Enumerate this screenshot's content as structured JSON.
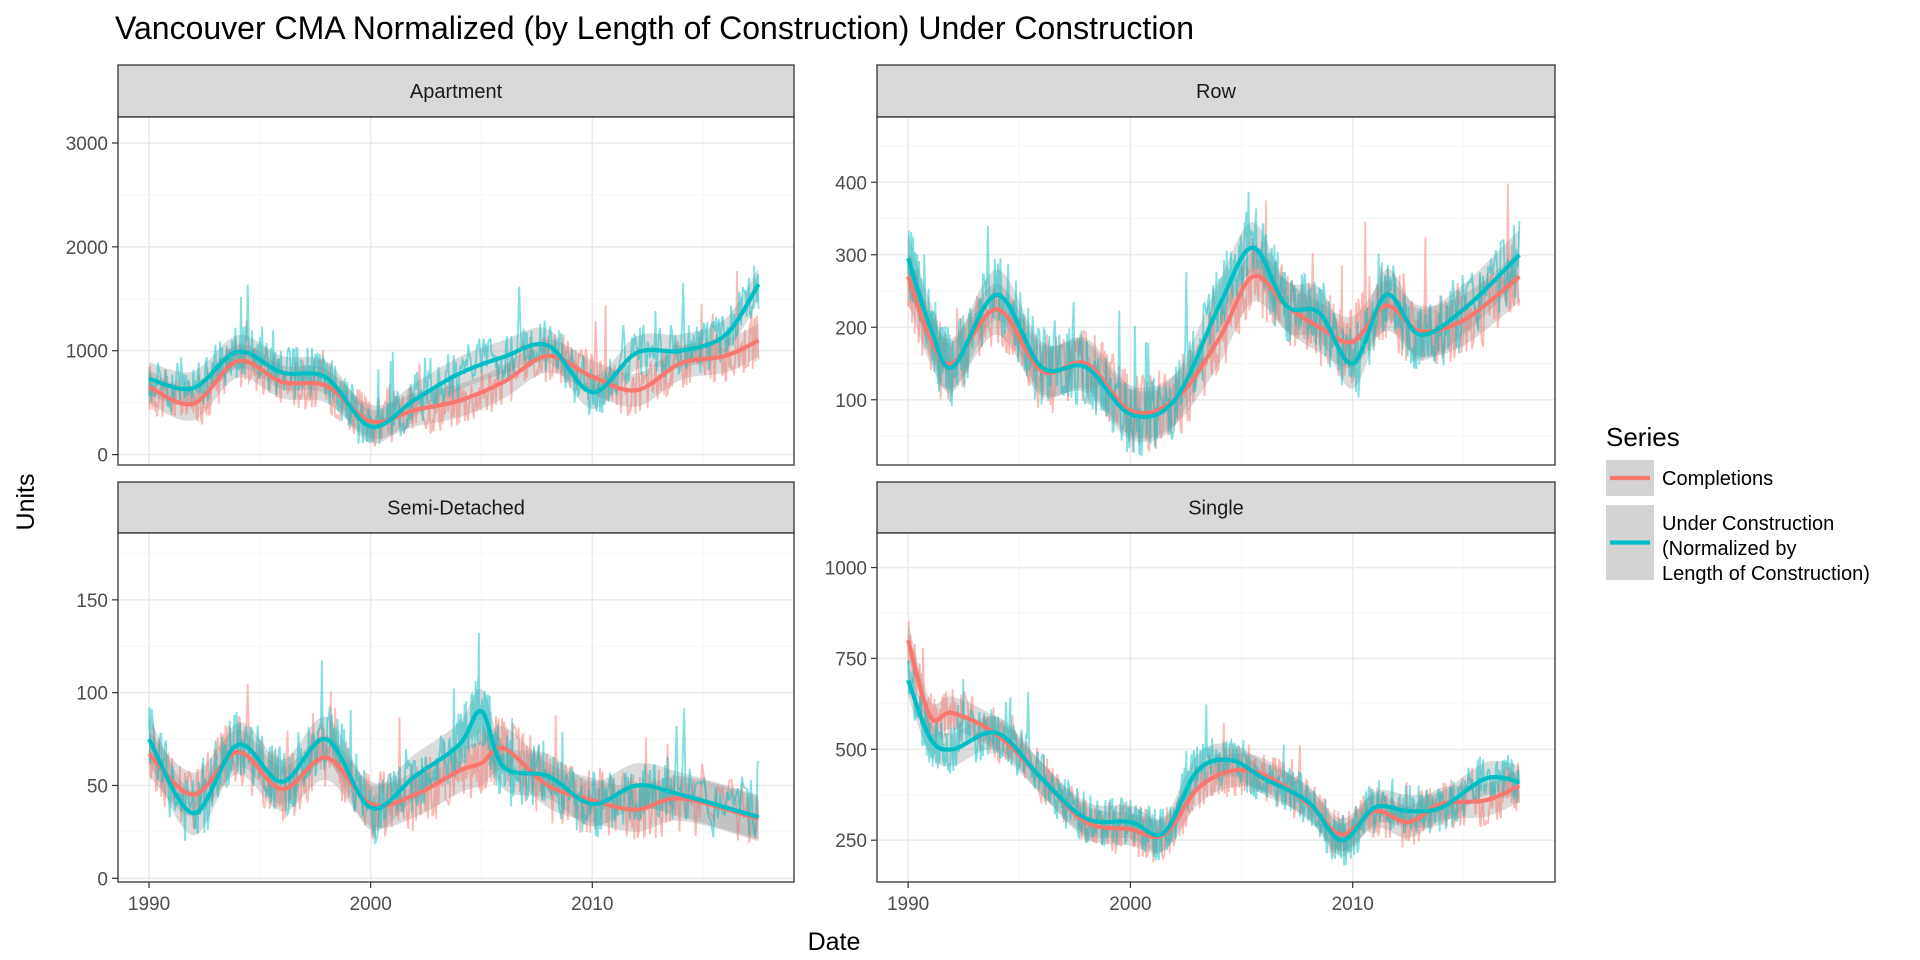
{
  "chart_data": {
    "type": "line",
    "title": "Vancouver CMA Normalized (by Length of Construction) Under Construction",
    "xlabel": "Date",
    "ylabel": "Units",
    "legend": {
      "title": "Series",
      "placement": "right",
      "entries": [
        {
          "lines": [
            "Completions"
          ],
          "color": "#F8766D"
        },
        {
          "lines": [
            "Under Construction",
            "(Normalized by",
            "Length of Construction)"
          ],
          "color": "#00BFC4"
        }
      ]
    },
    "colors": {
      "completions": "#F8766D",
      "under_construction": "#00BFC4",
      "ribbon": "#999999",
      "strip": "#D9D9D9",
      "grid_major": "#EBEBEB",
      "grid_minor": "#F5F5F5"
    },
    "grid": true,
    "x_ticks": [
      1990,
      2000,
      2010
    ],
    "xlim": [
      1988.6,
      2019.1
    ],
    "panels": [
      {
        "name": "Apartment",
        "ylim": [
          -100,
          3250
        ],
        "y_ticks": [
          0,
          1000,
          2000,
          3000
        ],
        "x": [
          1990,
          1992,
          1994,
          1996,
          1998,
          2000,
          2002,
          2004,
          2006,
          2008,
          2010,
          2012,
          2014,
          2016,
          2017.5
        ],
        "series": [
          {
            "name": "Completions",
            "smooth": [
              650,
              490,
              900,
              700,
              660,
              320,
              430,
              520,
              700,
              950,
              750,
              620,
              880,
              950,
              1100
            ]
          },
          {
            "name": "Under Construction (Normalized by Length of Construction)",
            "smooth": [
              730,
              640,
              990,
              790,
              740,
              270,
              530,
              780,
              940,
              1050,
              600,
              980,
              1000,
              1150,
              1640
            ]
          }
        ],
        "ribbon_halfwidth": 160
      },
      {
        "name": "Row",
        "ylim": [
          10,
          490
        ],
        "y_ticks": [
          100,
          200,
          300,
          400
        ],
        "x": [
          1990,
          1991,
          1992,
          1994,
          1996,
          1998,
          2000,
          2002,
          2004,
          2005.5,
          2007,
          2008.5,
          2010,
          2011.5,
          2013,
          2015,
          2017.5
        ],
        "series": [
          {
            "name": "Completions",
            "smooth": [
              270,
              185,
              150,
              225,
              140,
              150,
              85,
              100,
              185,
              270,
              230,
              200,
              180,
              230,
              195,
              210,
              270
            ]
          },
          {
            "name": "Under Construction (Normalized by Length of Construction)",
            "smooth": [
              295,
              200,
              145,
              245,
              145,
              145,
              80,
              100,
              230,
              310,
              230,
              220,
              150,
              245,
              190,
              225,
              300
            ]
          }
        ],
        "ribbon_halfwidth": 35
      },
      {
        "name": "Semi-Detached",
        "ylim": [
          -2,
          186
        ],
        "y_ticks": [
          0,
          50,
          100,
          150
        ],
        "x": [
          1990,
          1992,
          1994,
          1996,
          1998,
          2000,
          2002,
          2004,
          2005,
          2006,
          2008,
          2010,
          2012,
          2014,
          2017.5
        ],
        "series": [
          {
            "name": "Completions",
            "smooth": [
              67,
              45,
              68,
              48,
              65,
              40,
              45,
              58,
              62,
              70,
              50,
              42,
              37,
              43,
              32
            ]
          },
          {
            "name": "Under Construction (Normalized by Length of Construction)",
            "smooth": [
              75,
              35,
              72,
              52,
              75,
              38,
              55,
              72,
              90,
              60,
              55,
              40,
              50,
              45,
              33
            ]
          }
        ],
        "ribbon_halfwidth": 12
      },
      {
        "name": "Single",
        "ylim": [
          135,
          1095
        ],
        "y_ticks": [
          250,
          500,
          750,
          1000
        ],
        "x": [
          1990,
          1991,
          1992,
          1994,
          1996,
          1998,
          2000,
          2001.5,
          2003,
          2004.5,
          2006,
          2008,
          2009.5,
          2011,
          2012.5,
          2014,
          2016,
          2017.5
        ],
        "series": [
          {
            "name": "Completions",
            "smooth": [
              800,
              590,
              600,
              540,
              420,
              300,
              280,
              265,
              390,
              440,
              430,
              350,
              265,
              330,
              300,
              350,
              360,
              400
            ]
          },
          {
            "name": "Under Construction (Normalized by Length of Construction)",
            "smooth": [
              690,
              530,
              500,
              545,
              420,
              310,
              300,
              270,
              440,
              470,
              420,
              355,
              250,
              340,
              330,
              340,
              420,
              410
            ]
          }
        ],
        "ribbon_halfwidth": 45
      }
    ]
  }
}
